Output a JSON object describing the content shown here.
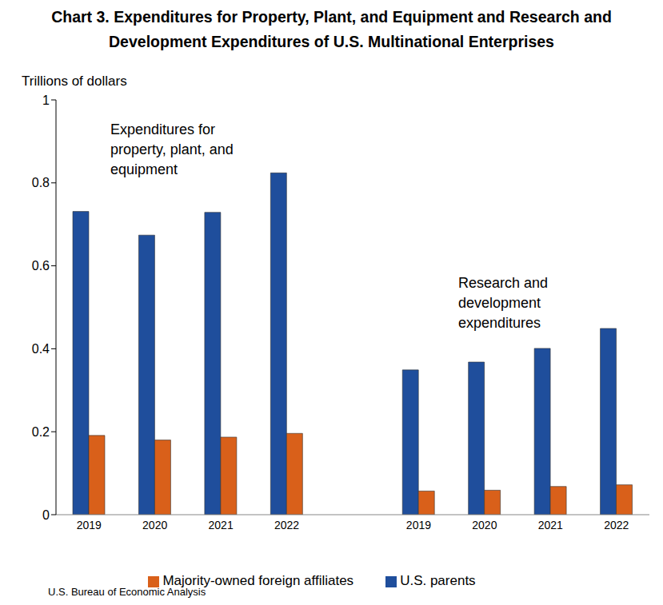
{
  "chart_data": {
    "type": "bar",
    "title": "Chart 3. Expenditures for Property, Plant, and Equipment and Research and Development Expenditures of U.S. Multinational Enterprises",
    "y_label": "Trillions of dollars",
    "categories": [
      "2019",
      "2020",
      "2021",
      "2022",
      null,
      "2019",
      "2020",
      "2021",
      "2022"
    ],
    "series": [
      {
        "name": "U.S. parents",
        "color": "#1F4E9C",
        "values": [
          0.731,
          0.674,
          0.729,
          0.824,
          null,
          0.349,
          0.368,
          0.401,
          0.449
        ]
      },
      {
        "name": "Majority-owned foreign affiliates",
        "color": "#D9601A",
        "values": [
          0.191,
          0.18,
          0.187,
          0.196,
          null,
          0.057,
          0.059,
          0.068,
          0.072
        ]
      }
    ],
    "ylim": [
      0,
      1
    ],
    "yticks": [
      0,
      0.2,
      0.4,
      0.6,
      0.8,
      1
    ],
    "grid": false,
    "legend": "bottom",
    "annotations": [
      "Expenditures for property, plant, and equipment",
      "Research and development expenditures"
    ],
    "source": "U.S. Bureau of Economic Analysis"
  }
}
